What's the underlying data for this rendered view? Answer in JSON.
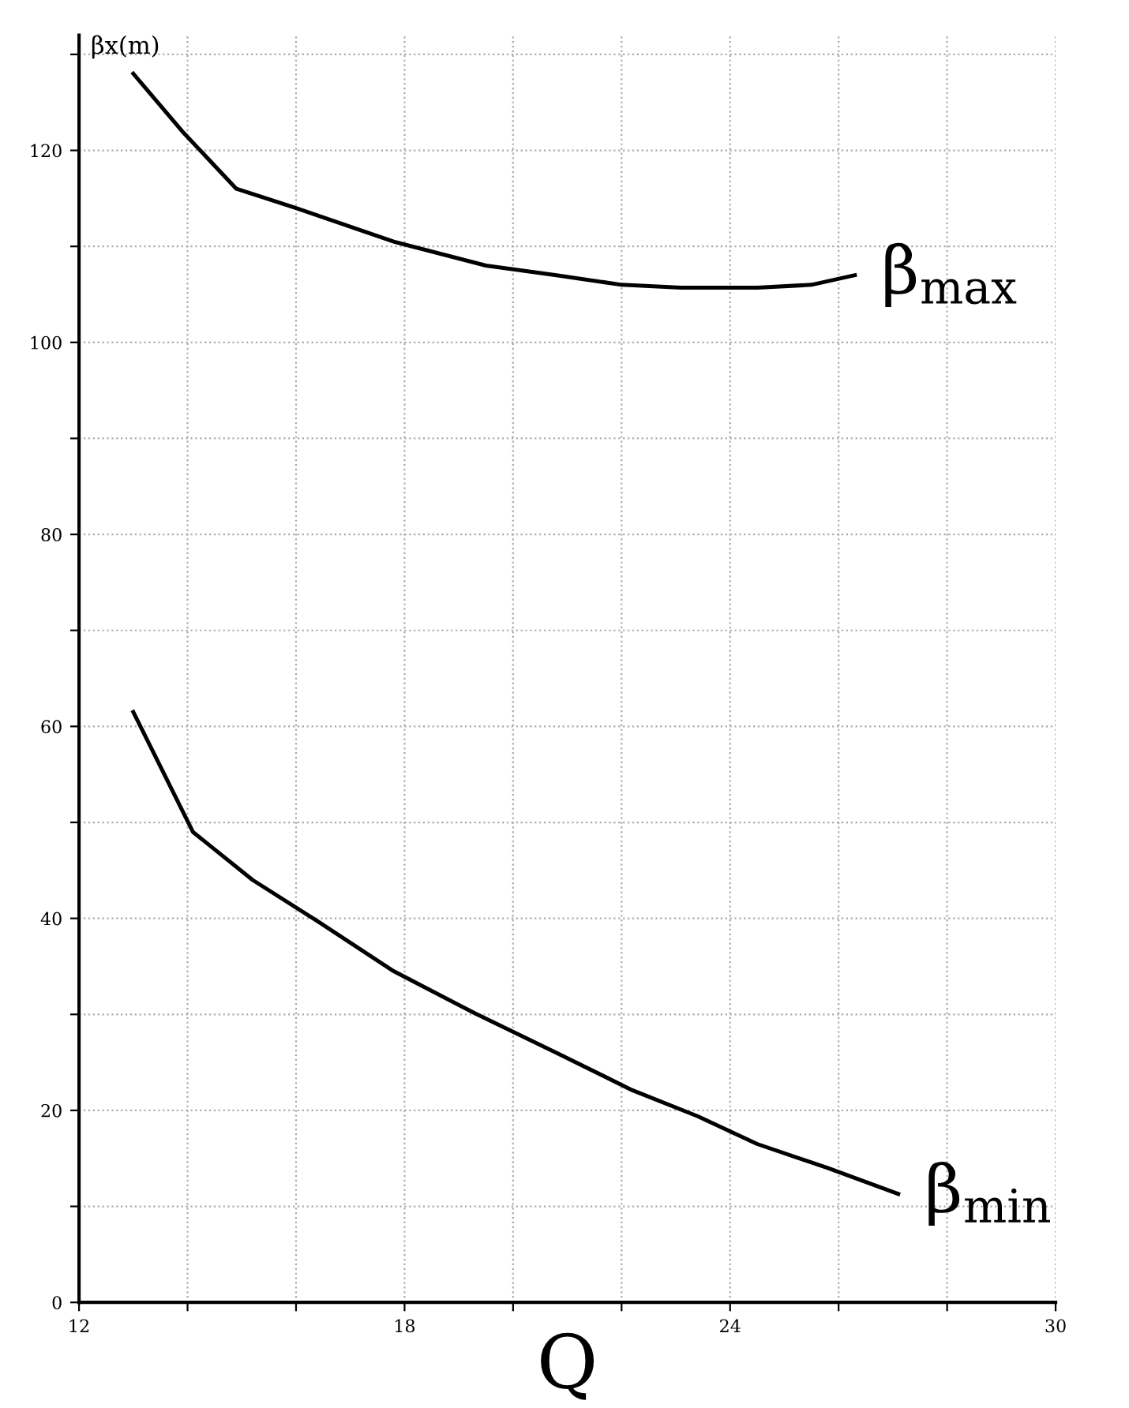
{
  "chart_data": {
    "type": "line",
    "xlabel": "Q",
    "ylabel": "βx(m)",
    "xlim": [
      12,
      30
    ],
    "ylim": [
      0,
      132
    ],
    "xticks": [
      12,
      {
        "value": 14,
        "label": null
      },
      {
        "value": 16,
        "label": null
      },
      18,
      {
        "value": 20,
        "label": null
      },
      {
        "value": 22,
        "label": null
      },
      24,
      {
        "value": 26,
        "label": null
      },
      {
        "value": 28,
        "label": null
      },
      30
    ],
    "yticks": [
      0,
      {
        "value": 10,
        "label": null
      },
      20,
      {
        "value": 30,
        "label": null
      },
      40,
      {
        "value": 50,
        "label": null
      },
      60,
      {
        "value": 70,
        "label": null
      },
      80,
      {
        "value": 90,
        "label": null
      },
      100,
      {
        "value": 110,
        "label": null
      },
      120,
      {
        "value": 130,
        "label": null
      }
    ],
    "grid": true,
    "line_style": "solid",
    "marker": "none",
    "series": [
      {
        "name": "β$_{max}$",
        "color": "#000000",
        "x": [
          13.0,
          13.9,
          14.9,
          16.0,
          17.8,
          19.5,
          20.8,
          22.0,
          23.1,
          24.5,
          25.5,
          26.3
        ],
        "values": [
          128,
          122,
          116,
          114,
          110.5,
          108,
          107,
          106,
          105.7,
          105.7,
          106,
          107
        ]
      },
      {
        "name": "β$_{min}$",
        "color": "#000000",
        "x": [
          13.0,
          14.1,
          15.2,
          16.4,
          17.8,
          19.3,
          20.8,
          22.2,
          23.4,
          24.5,
          25.8,
          27.1
        ],
        "values": [
          61.5,
          49,
          44,
          39.7,
          34.5,
          30.1,
          26,
          22.1,
          19.4,
          16.5,
          14,
          11.3
        ]
      }
    ]
  }
}
